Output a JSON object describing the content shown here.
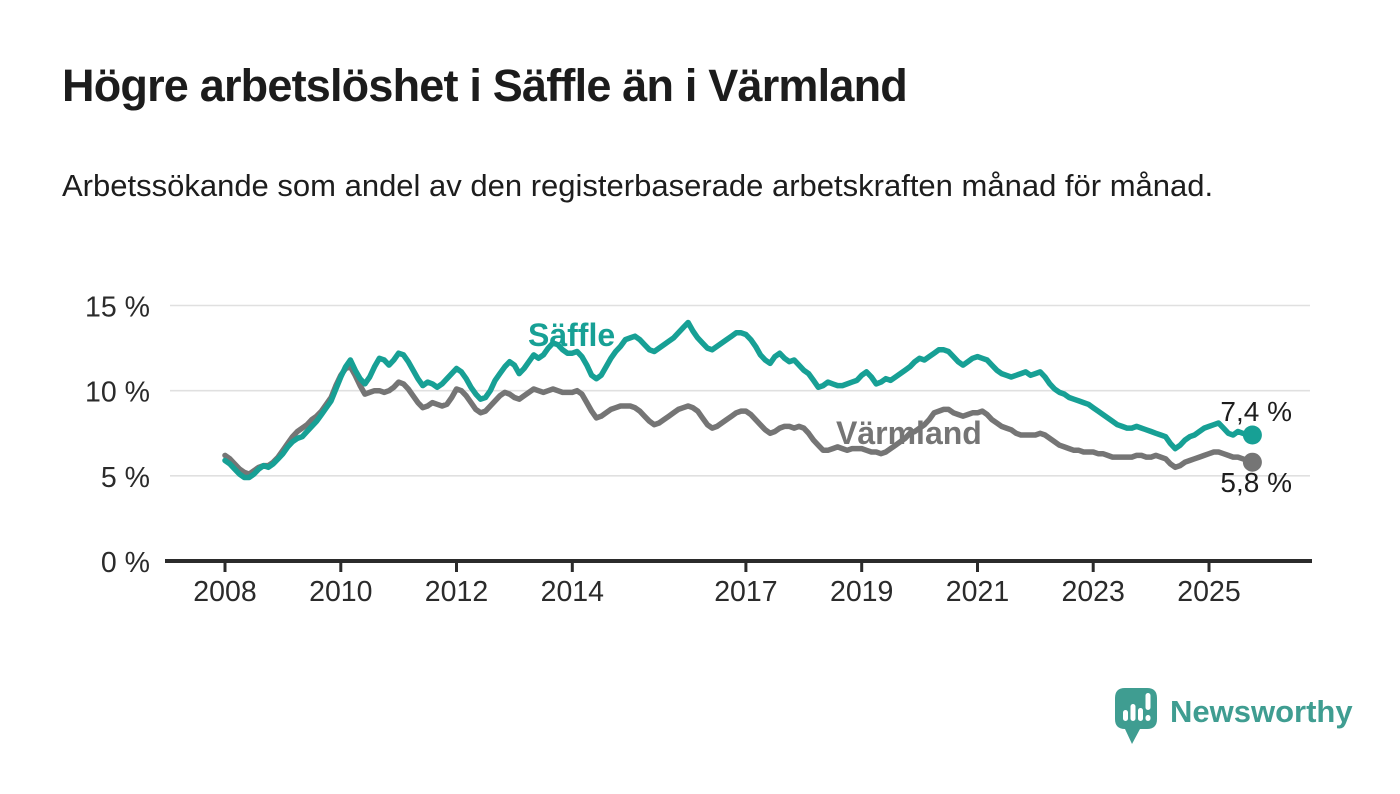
{
  "header": {
    "title": "Högre arbetslöshet i Säffle än i Värmland",
    "subtitle": "Arbetssökande som andel av den registerbaserade arbetskraften månad för månad."
  },
  "chart_data": {
    "type": "line",
    "title": "Högre arbetslöshet i Säffle än i Värmland",
    "subtitle": "Arbetssökande som andel av den registerbaserade arbetskraften månad för månad.",
    "unit": "%",
    "frequency": "monthly",
    "x_start": "2008-01",
    "x_end": "2025-10",
    "ylim": [
      0,
      15
    ],
    "grid": "horizontal",
    "legend_position": "inline-labels",
    "ytick_values": [
      0,
      5,
      10,
      15
    ],
    "ytick_labels": [
      "0 %",
      "5 %",
      "10 %",
      "15 %"
    ],
    "xtick_years": [
      2008,
      2010,
      2012,
      2014,
      2017,
      2019,
      2021,
      2023,
      2025
    ],
    "xtick_labels": [
      "2008",
      "2010",
      "2012",
      "2014",
      "2017",
      "2019",
      "2021",
      "2023",
      "2025"
    ],
    "series": [
      {
        "id": "varmland",
        "name": "Värmland",
        "color": "#757575",
        "end_label": "5,8 %",
        "end_value": 5.8,
        "values": [
          6.2,
          6.0,
          5.7,
          5.4,
          5.2,
          5.1,
          5.3,
          5.5,
          5.6,
          5.6,
          5.8,
          6.1,
          6.5,
          6.9,
          7.3,
          7.6,
          7.8,
          8.0,
          8.3,
          8.5,
          8.8,
          9.2,
          9.6,
          10.3,
          10.9,
          11.3,
          11.4,
          10.9,
          10.3,
          9.8,
          9.9,
          10.0,
          10.0,
          9.9,
          10.0,
          10.2,
          10.5,
          10.4,
          10.1,
          9.7,
          9.3,
          9.0,
          9.1,
          9.3,
          9.2,
          9.1,
          9.2,
          9.6,
          10.1,
          10.0,
          9.7,
          9.3,
          8.9,
          8.7,
          8.8,
          9.1,
          9.4,
          9.7,
          9.9,
          9.8,
          9.6,
          9.5,
          9.7,
          9.9,
          10.1,
          10.0,
          9.9,
          10.0,
          10.1,
          10.0,
          9.9,
          9.9,
          9.9,
          10.0,
          9.8,
          9.3,
          8.8,
          8.4,
          8.5,
          8.7,
          8.9,
          9.0,
          9.1,
          9.1,
          9.1,
          9.0,
          8.8,
          8.5,
          8.2,
          8.0,
          8.1,
          8.3,
          8.5,
          8.7,
          8.9,
          9.0,
          9.1,
          9.0,
          8.8,
          8.4,
          8.0,
          7.8,
          7.9,
          8.1,
          8.3,
          8.5,
          8.7,
          8.8,
          8.8,
          8.6,
          8.3,
          8.0,
          7.7,
          7.5,
          7.6,
          7.8,
          7.9,
          7.9,
          7.8,
          7.9,
          7.8,
          7.5,
          7.1,
          6.8,
          6.5,
          6.5,
          6.6,
          6.7,
          6.6,
          6.5,
          6.6,
          6.6,
          6.6,
          6.5,
          6.4,
          6.4,
          6.3,
          6.4,
          6.6,
          6.8,
          7.0,
          7.2,
          7.5,
          7.6,
          7.8,
          8.0,
          8.3,
          8.7,
          8.8,
          8.9,
          8.9,
          8.7,
          8.6,
          8.5,
          8.6,
          8.7,
          8.7,
          8.8,
          8.6,
          8.3,
          8.1,
          7.9,
          7.8,
          7.7,
          7.5,
          7.4,
          7.4,
          7.4,
          7.4,
          7.5,
          7.4,
          7.2,
          7.0,
          6.8,
          6.7,
          6.6,
          6.5,
          6.5,
          6.4,
          6.4,
          6.4,
          6.3,
          6.3,
          6.2,
          6.1,
          6.1,
          6.1,
          6.1,
          6.1,
          6.2,
          6.2,
          6.1,
          6.1,
          6.2,
          6.1,
          6.0,
          5.7,
          5.5,
          5.6,
          5.8,
          5.9,
          6.0,
          6.1,
          6.2,
          6.3,
          6.4,
          6.4,
          6.3,
          6.2,
          6.1,
          6.1,
          6.0,
          5.9,
          5.8
        ]
      },
      {
        "id": "saffle",
        "name": "Säffle",
        "color": "#17a095",
        "end_label": "7,4 %",
        "end_value": 7.4,
        "values": [
          5.9,
          5.7,
          5.4,
          5.1,
          4.9,
          4.9,
          5.1,
          5.4,
          5.6,
          5.5,
          5.7,
          6.0,
          6.3,
          6.7,
          7.0,
          7.2,
          7.3,
          7.6,
          7.9,
          8.2,
          8.6,
          9.0,
          9.4,
          10.1,
          10.8,
          11.4,
          11.8,
          11.2,
          10.7,
          10.4,
          10.8,
          11.4,
          11.9,
          11.8,
          11.5,
          11.8,
          12.2,
          12.1,
          11.7,
          11.2,
          10.7,
          10.3,
          10.5,
          10.4,
          10.2,
          10.4,
          10.7,
          11.0,
          11.3,
          11.1,
          10.7,
          10.2,
          9.8,
          9.5,
          9.6,
          10.0,
          10.6,
          11.0,
          11.4,
          11.7,
          11.5,
          11.0,
          11.3,
          11.7,
          12.1,
          11.9,
          12.1,
          12.5,
          12.8,
          12.7,
          12.4,
          12.2,
          12.2,
          12.3,
          12.0,
          11.5,
          10.9,
          10.7,
          10.9,
          11.4,
          11.9,
          12.3,
          12.6,
          13.0,
          13.1,
          13.2,
          13.0,
          12.7,
          12.4,
          12.3,
          12.5,
          12.7,
          12.9,
          13.1,
          13.4,
          13.7,
          14.0,
          13.5,
          13.1,
          12.8,
          12.5,
          12.4,
          12.6,
          12.8,
          13.0,
          13.2,
          13.4,
          13.4,
          13.3,
          13.0,
          12.6,
          12.1,
          11.8,
          11.6,
          12.0,
          12.2,
          11.9,
          11.7,
          11.8,
          11.5,
          11.2,
          11.0,
          10.6,
          10.2,
          10.3,
          10.5,
          10.4,
          10.3,
          10.3,
          10.4,
          10.5,
          10.6,
          10.9,
          11.1,
          10.8,
          10.4,
          10.5,
          10.7,
          10.6,
          10.8,
          11.0,
          11.2,
          11.4,
          11.7,
          11.9,
          11.8,
          12.0,
          12.2,
          12.4,
          12.4,
          12.3,
          12.0,
          11.7,
          11.5,
          11.7,
          11.9,
          12.0,
          11.9,
          11.8,
          11.5,
          11.2,
          11.0,
          10.9,
          10.8,
          10.9,
          11.0,
          11.1,
          10.9,
          11.0,
          11.1,
          10.8,
          10.4,
          10.1,
          9.9,
          9.8,
          9.6,
          9.5,
          9.4,
          9.3,
          9.2,
          9.0,
          8.8,
          8.6,
          8.4,
          8.2,
          8.0,
          7.9,
          7.8,
          7.8,
          7.9,
          7.8,
          7.7,
          7.6,
          7.5,
          7.4,
          7.3,
          6.9,
          6.6,
          6.8,
          7.1,
          7.3,
          7.4,
          7.6,
          7.8,
          7.9,
          8.0,
          8.1,
          7.8,
          7.5,
          7.4,
          7.6,
          7.5,
          7.4,
          7.4
        ]
      }
    ]
  },
  "footer": {
    "brand": "Newsworthy"
  },
  "colors": {
    "saffle": "#17a095",
    "varmland": "#757575",
    "grid": "#e0e0e0",
    "axis": "#2b2b2b",
    "text": "#1d1d1d",
    "logo": "#3f9d91",
    "background": "#ffffff"
  }
}
